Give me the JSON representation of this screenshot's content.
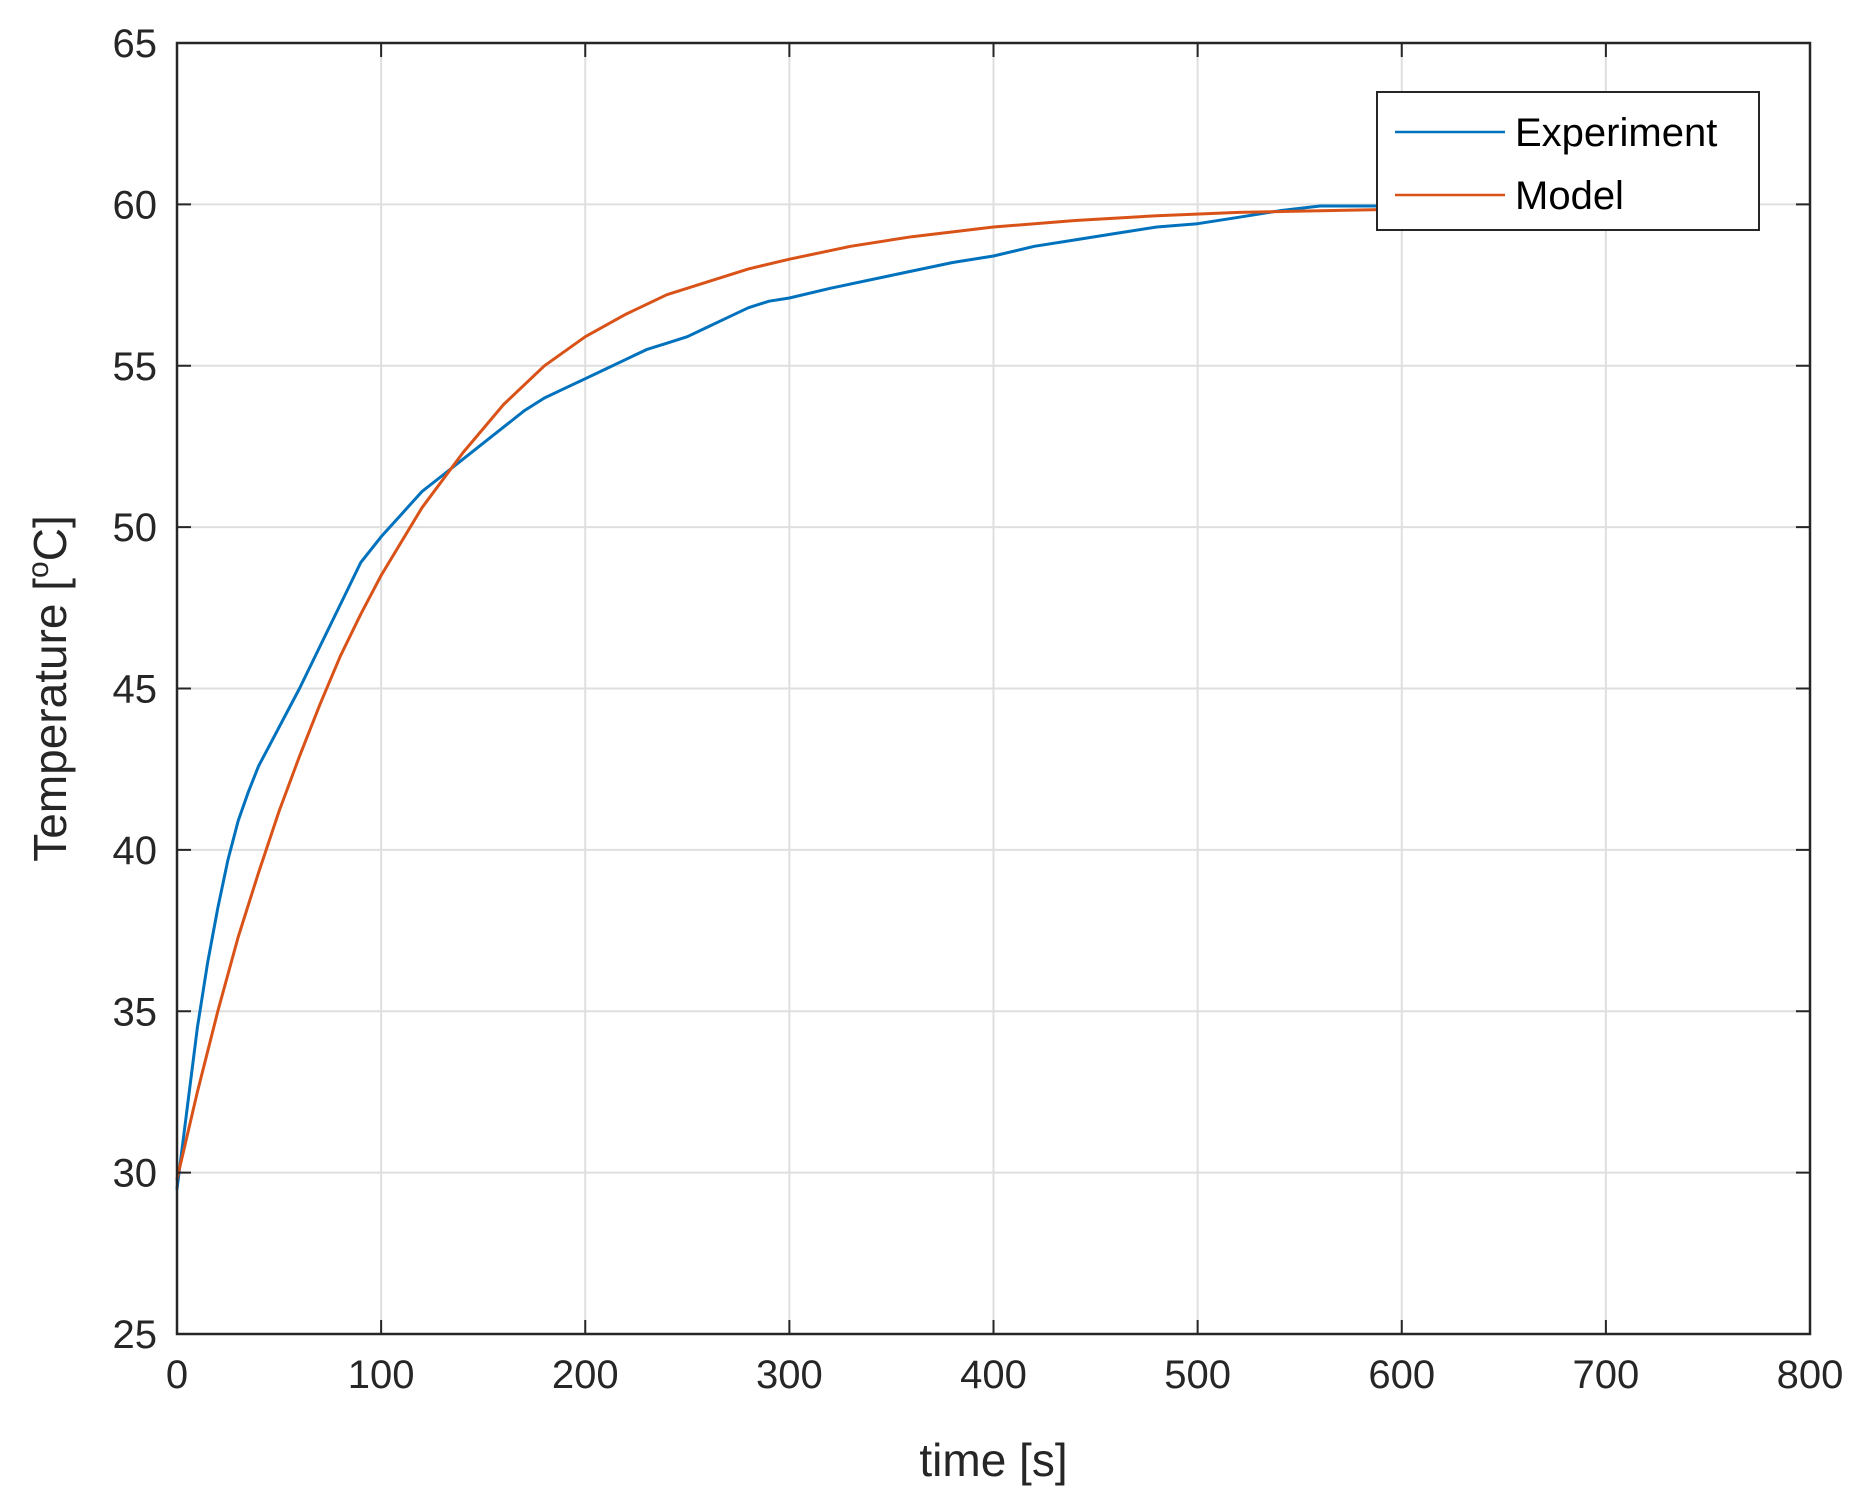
{
  "chart_data": {
    "type": "line",
    "xlabel": "time [s]",
    "ylabel": {
      "main": "Temperature [",
      "superscript": "o",
      "unit": "C]"
    },
    "xlim": [
      0,
      800
    ],
    "ylim": [
      25,
      65
    ],
    "xticks": [
      0,
      100,
      200,
      300,
      400,
      500,
      600,
      700,
      800
    ],
    "yticks": [
      25,
      30,
      35,
      40,
      45,
      50,
      55,
      60,
      65
    ],
    "grid": true,
    "legend": {
      "placement": "top-right"
    },
    "series": [
      {
        "name": "Experiment",
        "color": "#0072BD",
        "x": [
          0,
          2,
          5,
          10,
          15,
          20,
          25,
          30,
          35,
          40,
          45,
          50,
          60,
          70,
          80,
          90,
          95,
          100,
          110,
          120,
          130,
          140,
          150,
          160,
          170,
          180,
          190,
          200,
          210,
          220,
          230,
          240,
          250,
          260,
          270,
          280,
          290,
          300,
          320,
          350,
          380,
          400,
          420,
          440,
          460,
          480,
          500,
          520,
          540,
          560,
          580,
          600
        ],
        "y": [
          29.5,
          30.5,
          32.0,
          34.5,
          36.5,
          38.2,
          39.7,
          40.9,
          41.8,
          42.6,
          43.2,
          43.8,
          45.0,
          46.3,
          47.6,
          48.9,
          49.3,
          49.7,
          50.4,
          51.1,
          51.6,
          52.1,
          52.6,
          53.1,
          53.6,
          54.0,
          54.3,
          54.6,
          54.9,
          55.2,
          55.5,
          55.7,
          55.9,
          56.2,
          56.5,
          56.8,
          57.0,
          57.1,
          57.4,
          57.8,
          58.2,
          58.4,
          58.7,
          58.9,
          59.1,
          59.3,
          59.4,
          59.6,
          59.8,
          59.95,
          59.95,
          59.95
        ]
      },
      {
        "name": "Model",
        "color": "#D95319",
        "x": [
          0,
          10,
          20,
          30,
          40,
          50,
          60,
          70,
          80,
          90,
          100,
          120,
          140,
          160,
          180,
          200,
          220,
          240,
          260,
          280,
          300,
          330,
          360,
          400,
          440,
          480,
          520,
          560,
          600
        ],
        "y": [
          29.8,
          32.5,
          35.0,
          37.3,
          39.3,
          41.2,
          42.9,
          44.5,
          46.0,
          47.3,
          48.5,
          50.6,
          52.3,
          53.8,
          55.0,
          55.9,
          56.6,
          57.2,
          57.6,
          58.0,
          58.3,
          58.7,
          59.0,
          59.3,
          59.5,
          59.65,
          59.75,
          59.8,
          59.85
        ]
      }
    ]
  }
}
